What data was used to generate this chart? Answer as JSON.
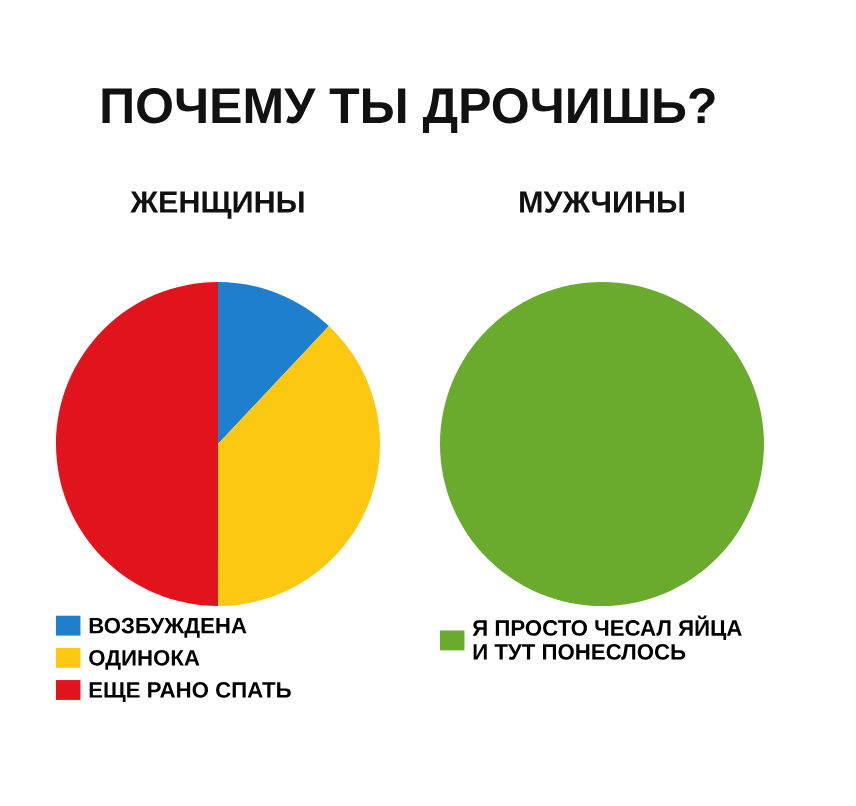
{
  "chart_data": [
    {
      "type": "other",
      "title": "ПОЧЕМУ ТЫ ДРОЧИШЬ?"
    },
    {
      "type": "pie",
      "title": "ЖЕНЩИНЫ",
      "categories": [
        "ВОЗБУЖДЕНА",
        "ОДИНОКА",
        "ЕЩЕ РАНО СПАТЬ"
      ],
      "values": [
        12,
        38,
        50
      ],
      "colors": [
        "#1f7fcf",
        "#fcc812",
        "#e1141d"
      ],
      "legend": "bottom"
    },
    {
      "type": "pie",
      "title": "МУЖЧИНЫ",
      "categories": [
        "Я ПРОСТО ЧЕСАЛ ЯЙЦА\nИ ТУТ ПОНЕСЛОСЬ"
      ],
      "values": [
        100
      ],
      "colors": [
        "#6aaa2c"
      ],
      "legend": "bottom"
    }
  ]
}
